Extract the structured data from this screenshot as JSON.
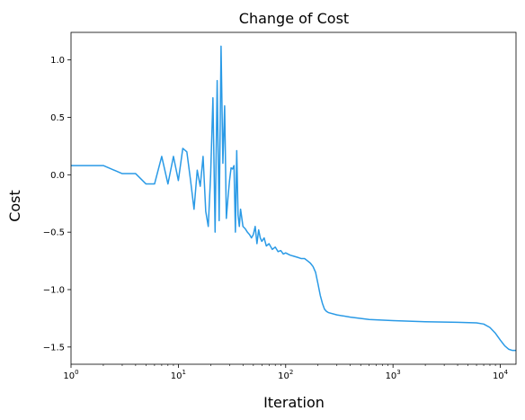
{
  "chart_data": {
    "type": "line",
    "title": "Change of Cost",
    "xlabel": "Iteration",
    "ylabel": "Cost",
    "xscale": "log",
    "xlim": [
      1,
      14000
    ],
    "ylim": [
      -1.65,
      1.24
    ],
    "grid": false,
    "x_ticks": [
      {
        "value": 1,
        "base": "10",
        "exp": "0"
      },
      {
        "value": 10,
        "base": "10",
        "exp": "1"
      },
      {
        "value": 100,
        "base": "10",
        "exp": "2"
      },
      {
        "value": 1000,
        "base": "10",
        "exp": "3"
      },
      {
        "value": 10000,
        "base": "10",
        "exp": "4"
      }
    ],
    "y_ticks": [
      {
        "value": 1.0,
        "label": "1.0"
      },
      {
        "value": 0.5,
        "label": "0.5"
      },
      {
        "value": 0.0,
        "label": "0.0"
      },
      {
        "value": -0.5,
        "label": "−0.5"
      },
      {
        "value": -1.0,
        "label": "−1.0"
      },
      {
        "value": -1.5,
        "label": "−1.5"
      }
    ],
    "series": [
      {
        "color": "#2a9ae6",
        "points": [
          [
            1,
            0.08
          ],
          [
            2,
            0.08
          ],
          [
            3,
            0.01
          ],
          [
            4,
            0.01
          ],
          [
            5,
            -0.08
          ],
          [
            6,
            -0.08
          ],
          [
            7,
            0.16
          ],
          [
            8,
            -0.08
          ],
          [
            9,
            0.16
          ],
          [
            10,
            -0.05
          ],
          [
            11,
            0.23
          ],
          [
            12,
            0.2
          ],
          [
            13,
            -0.05
          ],
          [
            14,
            -0.3
          ],
          [
            15,
            0.04
          ],
          [
            16,
            -0.1
          ],
          [
            17,
            0.16
          ],
          [
            18,
            -0.32
          ],
          [
            19,
            -0.45
          ],
          [
            20,
            0.0
          ],
          [
            21,
            0.67
          ],
          [
            22,
            -0.5
          ],
          [
            23,
            0.82
          ],
          [
            24,
            -0.4
          ],
          [
            25,
            1.12
          ],
          [
            26,
            0.1
          ],
          [
            27,
            0.6
          ],
          [
            28,
            -0.38
          ],
          [
            29,
            -0.2
          ],
          [
            30,
            -0.05
          ],
          [
            31,
            0.06
          ],
          [
            32,
            0.05
          ],
          [
            33,
            0.08
          ],
          [
            34,
            -0.5
          ],
          [
            35,
            0.21
          ],
          [
            36,
            -0.35
          ],
          [
            37,
            -0.45
          ],
          [
            38,
            -0.3
          ],
          [
            40,
            -0.45
          ],
          [
            42,
            -0.47
          ],
          [
            44,
            -0.5
          ],
          [
            46,
            -0.52
          ],
          [
            48,
            -0.55
          ],
          [
            50,
            -0.52
          ],
          [
            52,
            -0.45
          ],
          [
            54,
            -0.6
          ],
          [
            56,
            -0.48
          ],
          [
            58,
            -0.55
          ],
          [
            60,
            -0.58
          ],
          [
            63,
            -0.55
          ],
          [
            66,
            -0.62
          ],
          [
            70,
            -0.6
          ],
          [
            75,
            -0.65
          ],
          [
            80,
            -0.63
          ],
          [
            85,
            -0.67
          ],
          [
            90,
            -0.66
          ],
          [
            95,
            -0.69
          ],
          [
            100,
            -0.68
          ],
          [
            110,
            -0.7
          ],
          [
            120,
            -0.71
          ],
          [
            130,
            -0.72
          ],
          [
            140,
            -0.73
          ],
          [
            150,
            -0.73
          ],
          [
            160,
            -0.75
          ],
          [
            170,
            -0.77
          ],
          [
            180,
            -0.8
          ],
          [
            190,
            -0.85
          ],
          [
            200,
            -0.95
          ],
          [
            210,
            -1.05
          ],
          [
            220,
            -1.12
          ],
          [
            230,
            -1.17
          ],
          [
            240,
            -1.19
          ],
          [
            250,
            -1.2
          ],
          [
            300,
            -1.22
          ],
          [
            400,
            -1.24
          ],
          [
            600,
            -1.26
          ],
          [
            1000,
            -1.27
          ],
          [
            2000,
            -1.28
          ],
          [
            4000,
            -1.285
          ],
          [
            6000,
            -1.29
          ],
          [
            7000,
            -1.3
          ],
          [
            8000,
            -1.33
          ],
          [
            9000,
            -1.38
          ],
          [
            10000,
            -1.44
          ],
          [
            11000,
            -1.49
          ],
          [
            12000,
            -1.52
          ],
          [
            13000,
            -1.53
          ],
          [
            14000,
            -1.53
          ]
        ]
      }
    ]
  }
}
